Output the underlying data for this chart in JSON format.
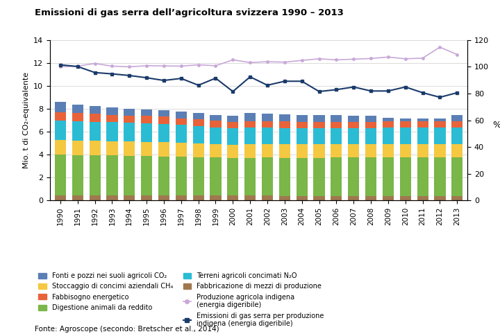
{
  "title": "Emissioni di gas serra dell’agricoltura svizzera 1990 – 2013",
  "years": [
    1990,
    1991,
    1992,
    1993,
    1994,
    1995,
    1996,
    1997,
    1998,
    1999,
    2000,
    2001,
    2002,
    2003,
    2004,
    2005,
    2006,
    2007,
    2008,
    2009,
    2010,
    2011,
    2012,
    2013
  ],
  "ylabel_left": "Mio. t di CO₂-equivalente",
  "ylabel_right": "%",
  "source": "Fonte: Agroscope (secondo: Bretscher et al., 2014)",
  "bar_data": {
    "fabbricazione": [
      0.45,
      0.44,
      0.44,
      0.44,
      0.43,
      0.43,
      0.42,
      0.42,
      0.42,
      0.42,
      0.41,
      0.41,
      0.41,
      0.4,
      0.4,
      0.4,
      0.4,
      0.4,
      0.4,
      0.4,
      0.4,
      0.4,
      0.4,
      0.4
    ],
    "digestione": [
      3.55,
      3.52,
      3.5,
      3.48,
      3.46,
      3.45,
      3.43,
      3.4,
      3.36,
      3.33,
      3.3,
      3.32,
      3.33,
      3.33,
      3.33,
      3.33,
      3.35,
      3.35,
      3.35,
      3.35,
      3.35,
      3.35,
      3.35,
      3.35
    ],
    "stoccaggio": [
      1.28,
      1.27,
      1.26,
      1.25,
      1.24,
      1.23,
      1.23,
      1.2,
      1.18,
      1.16,
      1.15,
      1.16,
      1.16,
      1.16,
      1.16,
      1.16,
      1.16,
      1.16,
      1.16,
      1.16,
      1.16,
      1.16,
      1.16,
      1.16
    ],
    "terreni": [
      1.72,
      1.7,
      1.68,
      1.66,
      1.65,
      1.63,
      1.61,
      1.56,
      1.53,
      1.48,
      1.46,
      1.45,
      1.44,
      1.44,
      1.42,
      1.42,
      1.42,
      1.42,
      1.42,
      1.48,
      1.46,
      1.46,
      1.46,
      1.46
    ],
    "fabbisogno": [
      0.7,
      0.68,
      0.67,
      0.65,
      0.64,
      0.63,
      0.62,
      0.6,
      0.59,
      0.57,
      0.56,
      0.57,
      0.56,
      0.56,
      0.55,
      0.55,
      0.55,
      0.55,
      0.55,
      0.55,
      0.55,
      0.55,
      0.55,
      0.55
    ],
    "fonti": [
      0.88,
      0.75,
      0.68,
      0.65,
      0.6,
      0.58,
      0.55,
      0.55,
      0.53,
      0.52,
      0.5,
      0.72,
      0.67,
      0.62,
      0.6,
      0.57,
      0.55,
      0.52,
      0.5,
      0.25,
      0.25,
      0.25,
      0.25,
      0.52
    ]
  },
  "line_purple_pct": [
    100.0,
    100.5,
    102.5,
    100.5,
    100.0,
    100.8,
    100.7,
    100.5,
    101.5,
    100.8,
    105.2,
    103.2,
    103.8,
    103.5,
    104.8,
    106.0,
    105.2,
    105.7,
    106.2,
    107.3,
    106.0,
    106.5,
    114.7,
    109.2
  ],
  "line_blue_pct": [
    101.5,
    100.2,
    95.7,
    94.7,
    93.5,
    91.8,
    89.8,
    91.3,
    86.2,
    91.5,
    81.5,
    92.5,
    86.2,
    89.2,
    89.2,
    81.5,
    82.9,
    84.9,
    81.9,
    81.9,
    84.9,
    80.6,
    77.2,
    80.6
  ],
  "colors": {
    "fabbricazione": "#a07850",
    "digestione": "#7ab648",
    "stoccaggio": "#f5c842",
    "terreni": "#2bbcd4",
    "fabbisogno": "#e8633a",
    "fonti": "#5b7fb5",
    "line_purple": "#c8a8d8",
    "line_blue": "#1a3a6a"
  },
  "ylim_left": [
    0,
    14
  ],
  "ylim_right": [
    0,
    120
  ],
  "yticks_left": [
    0,
    2,
    4,
    6,
    8,
    10,
    12,
    14
  ],
  "yticks_right": [
    0,
    20,
    40,
    60,
    80,
    100,
    120
  ]
}
